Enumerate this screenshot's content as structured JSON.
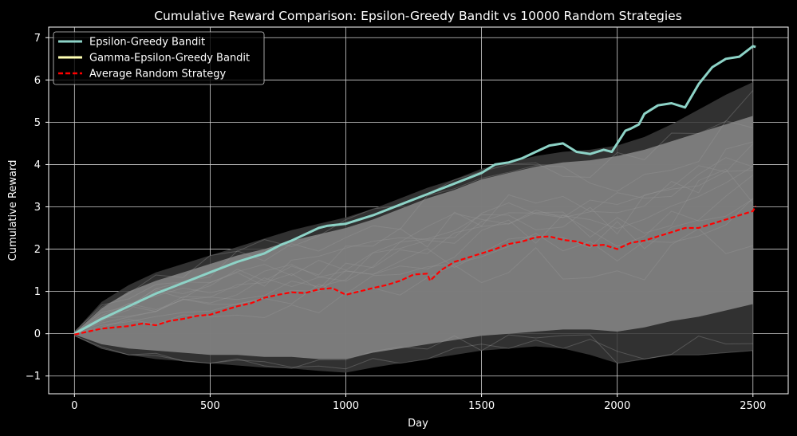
{
  "chart_data": {
    "type": "line",
    "title": "Cumulative Reward Comparison: Epsilon-Greedy Bandit vs 10000 Random Strategies",
    "xlabel": "Day",
    "ylabel": "Cumulative Reward",
    "xlim": [
      -95,
      2630
    ],
    "ylim": [
      -1.42,
      7.25
    ],
    "x_ticks": [
      0,
      500,
      1000,
      1500,
      2000,
      2500
    ],
    "y_ticks": [
      -1,
      0,
      1,
      2,
      3,
      4,
      5,
      6,
      7
    ],
    "grid": true,
    "legend_position": "top-left",
    "background": "#000000",
    "series": [
      {
        "name": "Epsilon-Greedy Bandit",
        "color": "#8dd3c7",
        "style": "solid",
        "x": [
          0,
          100,
          200,
          300,
          400,
          500,
          600,
          700,
          760,
          800,
          850,
          900,
          930,
          1000,
          1100,
          1200,
          1300,
          1400,
          1500,
          1550,
          1600,
          1650,
          1700,
          1750,
          1800,
          1850,
          1900,
          1950,
          1980,
          2000,
          2030,
          2050,
          2080,
          2100,
          2150,
          2200,
          2250,
          2300,
          2350,
          2400,
          2450,
          2500,
          2510
        ],
        "y": [
          0,
          0.35,
          0.65,
          0.95,
          1.2,
          1.45,
          1.7,
          1.9,
          2.1,
          2.2,
          2.35,
          2.5,
          2.55,
          2.6,
          2.8,
          3.05,
          3.3,
          3.55,
          3.8,
          4.0,
          4.05,
          4.15,
          4.3,
          4.45,
          4.5,
          4.3,
          4.25,
          4.35,
          4.3,
          4.5,
          4.8,
          4.85,
          4.95,
          5.2,
          5.4,
          5.45,
          5.35,
          5.9,
          6.3,
          6.5,
          6.55,
          6.8,
          6.78
        ]
      },
      {
        "name": "Gamma-Epsilon-Greedy Bandit",
        "color": "#ffffb3",
        "style": "solid",
        "x": [],
        "y": []
      },
      {
        "name": "Average Random Strategy",
        "color": "#ff0000",
        "style": "dashed",
        "x": [
          0,
          50,
          100,
          150,
          200,
          250,
          300,
          350,
          400,
          450,
          500,
          550,
          600,
          650,
          700,
          750,
          800,
          850,
          900,
          950,
          1000,
          1050,
          1100,
          1150,
          1200,
          1250,
          1300,
          1310,
          1350,
          1400,
          1450,
          1500,
          1550,
          1600,
          1650,
          1700,
          1750,
          1800,
          1850,
          1900,
          1950,
          2000,
          2050,
          2100,
          2150,
          2200,
          2250,
          2300,
          2350,
          2400,
          2450,
          2500,
          2510
        ],
        "y": [
          -0.02,
          0.05,
          0.12,
          0.15,
          0.18,
          0.24,
          0.2,
          0.3,
          0.35,
          0.42,
          0.45,
          0.55,
          0.65,
          0.72,
          0.85,
          0.92,
          0.98,
          0.96,
          1.05,
          1.08,
          0.92,
          1.0,
          1.08,
          1.15,
          1.25,
          1.4,
          1.42,
          1.25,
          1.5,
          1.7,
          1.8,
          1.9,
          2.0,
          2.12,
          2.18,
          2.28,
          2.3,
          2.22,
          2.18,
          2.08,
          2.1,
          2.0,
          2.15,
          2.2,
          2.3,
          2.4,
          2.5,
          2.5,
          2.6,
          2.7,
          2.8,
          2.9,
          3.02
        ]
      }
    ],
    "random_band": {
      "name": "10000 Random Strategies",
      "color": "#808080",
      "x": [
        0,
        100,
        200,
        300,
        400,
        500,
        600,
        700,
        800,
        900,
        1000,
        1100,
        1200,
        1300,
        1400,
        1500,
        1600,
        1700,
        1800,
        1900,
        2000,
        2100,
        2200,
        2300,
        2400,
        2500
      ],
      "core_upper": [
        0.02,
        0.6,
        1.0,
        1.25,
        1.45,
        1.65,
        1.85,
        2.0,
        2.2,
        2.35,
        2.5,
        2.7,
        2.95,
        3.2,
        3.4,
        3.65,
        3.8,
        3.95,
        4.05,
        4.1,
        4.2,
        4.35,
        4.55,
        4.75,
        4.95,
        5.15
      ],
      "core_lower": [
        -0.02,
        -0.25,
        -0.35,
        -0.4,
        -0.45,
        -0.5,
        -0.5,
        -0.55,
        -0.55,
        -0.6,
        -0.6,
        -0.45,
        -0.35,
        -0.25,
        -0.15,
        -0.05,
        0.0,
        0.05,
        0.1,
        0.1,
        0.05,
        0.15,
        0.3,
        0.4,
        0.55,
        0.7
      ],
      "outer_upper": [
        0.05,
        0.75,
        1.15,
        1.45,
        1.65,
        1.85,
        2.05,
        2.25,
        2.45,
        2.6,
        2.75,
        2.95,
        3.2,
        3.45,
        3.65,
        3.9,
        4.05,
        4.2,
        4.3,
        4.35,
        4.45,
        4.65,
        4.95,
        5.3,
        5.65,
        5.95
      ],
      "outer_lower": [
        -0.05,
        -0.35,
        -0.5,
        -0.6,
        -0.65,
        -0.7,
        -0.75,
        -0.8,
        -0.82,
        -0.88,
        -0.92,
        -0.8,
        -0.7,
        -0.6,
        -0.5,
        -0.4,
        -0.35,
        -0.3,
        -0.35,
        -0.5,
        -0.7,
        -0.6,
        -0.5,
        -0.5,
        -0.45,
        -0.4
      ]
    }
  }
}
